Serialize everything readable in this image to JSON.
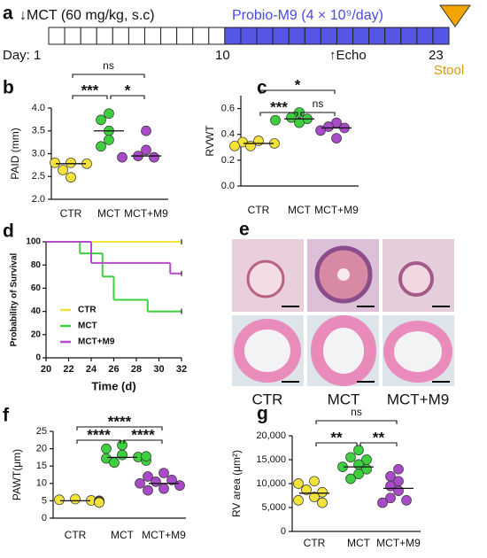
{
  "timeline": {
    "label": "a",
    "mct": "↓MCT (60 mg/kg, s.c)",
    "probio": "Probio-M9 (4 × 10⁹/day)",
    "day_start": "Day: 1",
    "day_mid": "10",
    "echo": "↑Echo",
    "day_end": "23",
    "stool": "Stool"
  },
  "histology": {
    "label": "e",
    "groups": [
      "CTR",
      "MCT",
      "MCT+M9"
    ]
  },
  "chart_data": [
    {
      "type": "dot",
      "label": "b",
      "ylabel": "PAID (mm)",
      "categories": [
        "CTR",
        "MCT",
        "MCT+M9"
      ],
      "colors": [
        "#f3e23a",
        "#3ecf3e",
        "#a94bc9"
      ],
      "values": [
        [
          2.8,
          2.8,
          2.78,
          2.64,
          2.48
        ],
        [
          3.88,
          3.74,
          3.5,
          3.3,
          3.16
        ],
        [
          3.5,
          3.08,
          2.95,
          2.92,
          2.92
        ]
      ],
      "medians": [
        2.78,
        3.5,
        2.95
      ],
      "ylim": [
        2,
        4
      ],
      "yticks": [
        {
          "value": 2,
          "label": "2.0"
        },
        2.5,
        {
          "value": 3,
          "label": "3.0"
        },
        3.5,
        {
          "value": 4,
          "label": "4.0"
        }
      ],
      "comparisons": [
        {
          "label": "ns",
          "groups": [
            "CTR",
            "MCT+M9"
          ]
        },
        {
          "label": "***",
          "groups": [
            "CTR",
            "MCT"
          ]
        },
        {
          "label": "*",
          "groups": [
            "MCT",
            "MCT+M9"
          ]
        }
      ]
    },
    {
      "type": "dot",
      "label": "c",
      "ylabel": "RVWT",
      "categories": [
        "CTR",
        "MCT",
        "MCT+M9"
      ],
      "colors": [
        "#f3e23a",
        "#3ecf3e",
        "#a94bc9"
      ],
      "values": [
        [
          0.35,
          0.34,
          0.33,
          0.31,
          0.31
        ],
        [
          0.57,
          0.53,
          0.52,
          0.51,
          0.49
        ],
        [
          0.49,
          0.46,
          0.45,
          0.43,
          0.37
        ]
      ],
      "medians": [
        0.33,
        0.52,
        0.45
      ],
      "ylim": [
        0,
        0.7
      ],
      "yticks": [
        {
          "value": 0,
          "label": "0.0"
        },
        0.2,
        0.4,
        0.6
      ],
      "comparisons": [
        {
          "label": "*",
          "groups": [
            "CTR",
            "MCT+M9"
          ]
        },
        {
          "label": "***",
          "groups": [
            "CTR",
            "MCT"
          ]
        },
        {
          "label": "ns",
          "groups": [
            "MCT",
            "MCT+M9"
          ]
        }
      ]
    },
    {
      "type": "survival",
      "label": "d",
      "ylabel": "Probability of Survival",
      "xlabel": "Time (d)",
      "xlim": [
        20,
        32
      ],
      "xticks": [
        20,
        22,
        24,
        26,
        28,
        30,
        32
      ],
      "ylim": [
        0,
        100
      ],
      "yticks": [
        0,
        20,
        40,
        60,
        80,
        100
      ],
      "series": [
        {
          "name": "CTR",
          "color": "#f3e23a",
          "x": [
            20
          ],
          "values": [
            100
          ]
        },
        {
          "name": "MCT",
          "color": "#3ecf3e",
          "x": [
            20,
            23,
            25,
            26,
            29
          ],
          "values": [
            100,
            90,
            70,
            50,
            40
          ]
        },
        {
          "name": "MCT+M9",
          "color": "#b44bc9",
          "x": [
            20,
            24,
            31
          ],
          "values": [
            100,
            81.8,
            72.7
          ]
        }
      ]
    },
    {
      "type": "dot",
      "label": "f",
      "ylabel": "PAWT(μm)",
      "categories": [
        "CTR",
        "MCT",
        "MCT+M9"
      ],
      "colors": [
        "#f3e23a",
        "#3ecf3e",
        "#a94bc9"
      ],
      "values": [
        [
          5.5,
          5.3,
          5.1,
          5,
          4.9,
          4.8,
          4.6,
          4.5
        ],
        [
          21,
          20,
          18.2,
          17.6,
          17.2,
          16.6,
          16,
          17.8
        ],
        [
          13,
          12,
          11,
          10.5,
          10,
          9.4,
          8.5,
          8
        ]
      ],
      "medians": [
        5,
        17.5,
        10
      ],
      "ylim": [
        0,
        25
      ],
      "yticks": [
        0,
        5,
        10,
        15,
        20,
        25
      ],
      "comparisons": [
        {
          "label": "****",
          "groups": [
            "CTR",
            "MCT+M9"
          ]
        },
        {
          "label": "****",
          "groups": [
            "CTR",
            "MCT"
          ]
        },
        {
          "label": "****",
          "groups": [
            "MCT",
            "MCT+M9"
          ]
        }
      ]
    },
    {
      "type": "dot",
      "label": "g",
      "ylabel": "RV area (μm²)",
      "categories": [
        "CTR",
        "MCT",
        "MCT+M9"
      ],
      "colors": [
        "#f3e23a",
        "#3ecf3e",
        "#a94bc9"
      ],
      "values": [
        [
          10500,
          10000,
          8700,
          8200,
          7200,
          6500,
          6000
        ],
        [
          17000,
          15500,
          15000,
          14000,
          13500,
          13000,
          12000,
          11000
        ],
        [
          13000,
          11500,
          10500,
          9500,
          8500,
          7000,
          6500,
          6000
        ]
      ],
      "medians": [
        8000,
        13500,
        9000
      ],
      "ylim": [
        0,
        20000
      ],
      "yticks": [
        0,
        {
          "value": 5000,
          "label": "5,000"
        },
        {
          "value": 10000,
          "label": "10,000"
        },
        {
          "value": 15000,
          "label": "15,000"
        },
        {
          "value": 20000,
          "label": "20,000"
        }
      ],
      "comparisons": [
        {
          "label": "ns",
          "groups": [
            "CTR",
            "MCT+M9"
          ]
        },
        {
          "label": "**",
          "groups": [
            "CTR",
            "MCT"
          ]
        },
        {
          "label": "**",
          "groups": [
            "MCT",
            "MCT+M9"
          ]
        }
      ]
    }
  ]
}
